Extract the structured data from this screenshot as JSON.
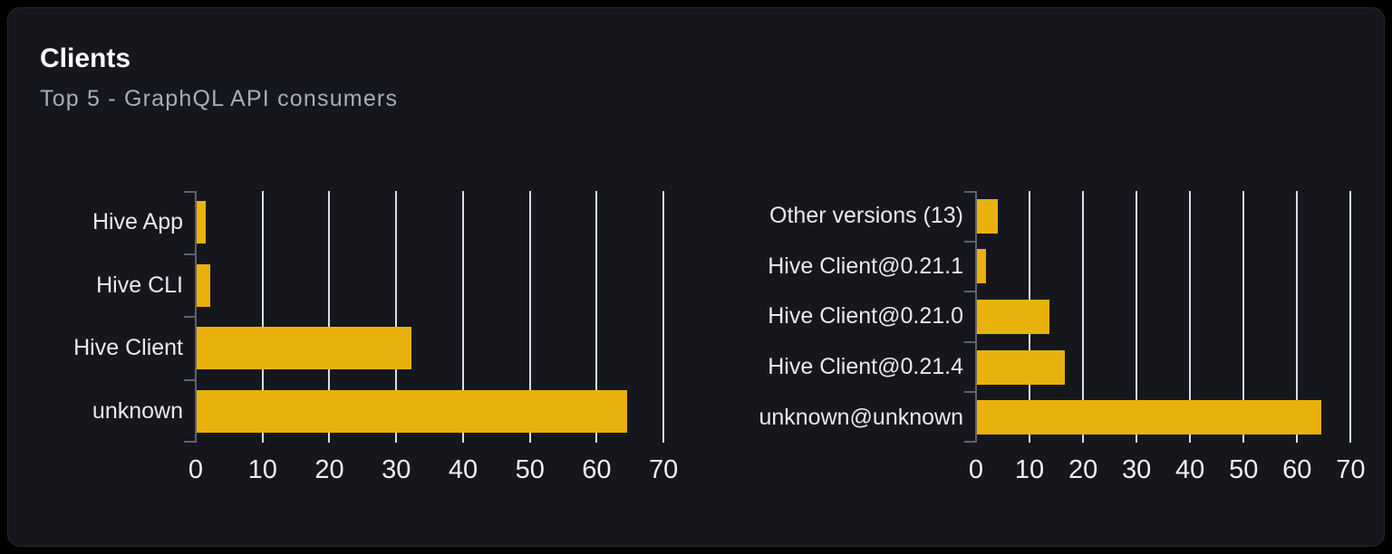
{
  "card": {
    "title": "Clients",
    "subtitle": "Top 5 - GraphQL API consumers"
  },
  "colors": {
    "page_bg": "#000000",
    "card_bg": "#15171d",
    "card_border": "#26292f",
    "title": "#ffffff",
    "subtitle": "#a9aeb4",
    "bar": "#e9b10b",
    "grid": "#d9dde3",
    "axis": "#5f6368",
    "label": "#e8eaed",
    "tick": "#eef0f3"
  },
  "chart_data": [
    {
      "type": "bar",
      "orientation": "horizontal",
      "categories": [
        "Hive App",
        "Hive CLI",
        "Hive Client",
        "unknown"
      ],
      "values": [
        1.4,
        2.1,
        32.1,
        64.4
      ],
      "x_ticks": [
        0,
        10,
        20,
        30,
        40,
        50,
        60,
        70
      ],
      "xlim": [
        0,
        73.5
      ],
      "grid": true,
      "legend": false
    },
    {
      "type": "bar",
      "orientation": "horizontal",
      "categories": [
        "Other versions (13)",
        "Hive Client@0.21.1",
        "Hive Client@0.21.0",
        "Hive Client@0.21.4",
        "unknown@unknown"
      ],
      "values": [
        3.9,
        1.7,
        13.6,
        16.4,
        64.4
      ],
      "x_ticks": [
        0,
        10,
        20,
        30,
        40,
        50,
        60,
        70
      ],
      "xlim": [
        0,
        73.5
      ],
      "grid": true,
      "legend": false
    }
  ]
}
